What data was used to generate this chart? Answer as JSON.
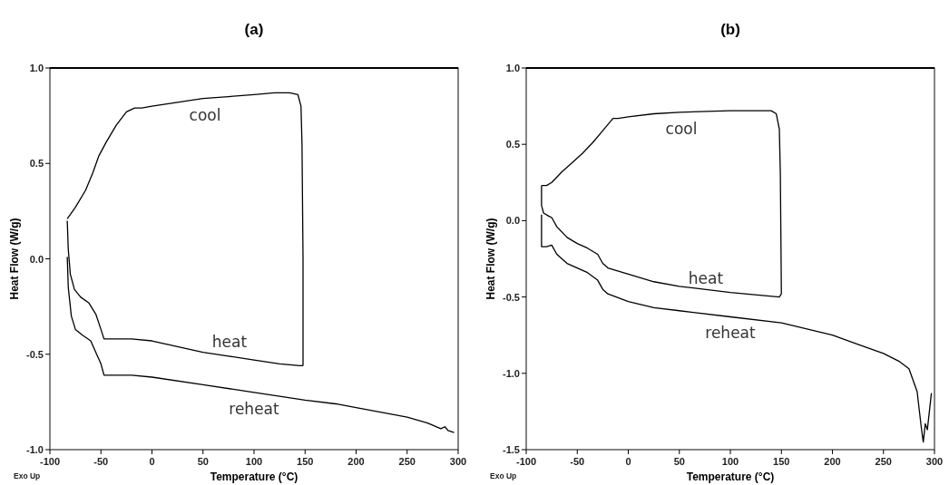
{
  "chart_data": [
    {
      "type": "line",
      "title": "(a)",
      "xlabel": "Temperature (°C)",
      "ylabel": "Heat Flow (W/g)",
      "xlim": [
        -100,
        300
      ],
      "ylim": [
        -1.0,
        1.0
      ],
      "xticks": [
        -100,
        -50,
        0,
        50,
        100,
        150,
        200,
        250,
        300
      ],
      "yticks": [
        {
          "value": -1,
          "label": "-1.0"
        },
        -0.5,
        {
          "value": 0,
          "label": "0.0"
        },
        0.5,
        {
          "value": 1,
          "label": "1.0"
        }
      ],
      "grid": false,
      "marker": "none",
      "line_style": "solid",
      "annotations": [
        "Exo Up"
      ],
      "series": [
        {
          "name": "cool",
          "color": "#000000",
          "x": [
            -83,
            -75,
            -65,
            -58,
            -52,
            -45,
            -35,
            -25,
            -17,
            -10,
            0,
            25,
            50,
            75,
            100,
            120,
            135,
            143,
            146,
            147,
            148,
            148
          ],
          "values": [
            0.21,
            0.27,
            0.36,
            0.45,
            0.54,
            0.61,
            0.7,
            0.77,
            0.79,
            0.79,
            0.8,
            0.82,
            0.84,
            0.85,
            0.86,
            0.87,
            0.87,
            0.86,
            0.8,
            0.6,
            0.0,
            -0.56
          ]
        },
        {
          "name": "heat",
          "color": "#000000",
          "x": [
            -83,
            -82,
            -80,
            -76,
            -70,
            -62,
            -55,
            -50,
            -47,
            -40,
            -20,
            0,
            25,
            50,
            75,
            100,
            125,
            145,
            148
          ],
          "values": [
            0.2,
            0.05,
            -0.08,
            -0.16,
            -0.2,
            -0.23,
            -0.29,
            -0.37,
            -0.42,
            -0.42,
            -0.42,
            -0.43,
            -0.46,
            -0.49,
            -0.51,
            -0.53,
            -0.55,
            -0.56,
            -0.56
          ]
        },
        {
          "name": "reheat",
          "color": "#000000",
          "x": [
            -83,
            -82,
            -79,
            -75,
            -68,
            -60,
            -55,
            -50,
            -47,
            -40,
            -20,
            0,
            50,
            100,
            150,
            180,
            200,
            250,
            270,
            283,
            287,
            290,
            296
          ],
          "values": [
            0.01,
            -0.15,
            -0.3,
            -0.37,
            -0.4,
            -0.43,
            -0.49,
            -0.55,
            -0.61,
            -0.61,
            -0.61,
            -0.62,
            -0.66,
            -0.7,
            -0.74,
            -0.76,
            -0.78,
            -0.83,
            -0.86,
            -0.89,
            -0.88,
            -0.9,
            -0.91
          ]
        }
      ]
    },
    {
      "type": "line",
      "title": "(b)",
      "xlabel": "Temperature (°C)",
      "ylabel": "Heat Flow (W/g)",
      "xlim": [
        -100,
        300
      ],
      "ylim": [
        -1.5,
        1.0
      ],
      "xticks": [
        -100,
        -50,
        0,
        50,
        100,
        150,
        200,
        250,
        300
      ],
      "yticks": [
        -1.5,
        {
          "value": -1,
          "label": "-1.0"
        },
        -0.5,
        {
          "value": 0,
          "label": "0.0"
        },
        0.5,
        {
          "value": 1,
          "label": "1.0"
        }
      ],
      "grid": false,
      "marker": "none",
      "line_style": "solid",
      "annotations": [
        "Exo Up"
      ],
      "series": [
        {
          "name": "cool",
          "color": "#000000",
          "x": [
            -85,
            -80,
            -75,
            -65,
            -55,
            -45,
            -35,
            -25,
            -15,
            -10,
            0,
            25,
            50,
            100,
            130,
            140,
            145,
            148,
            149,
            150
          ],
          "values": [
            0.23,
            0.23,
            0.25,
            0.32,
            0.38,
            0.44,
            0.51,
            0.59,
            0.67,
            0.67,
            0.68,
            0.7,
            0.71,
            0.72,
            0.72,
            0.72,
            0.7,
            0.6,
            0.3,
            -0.48
          ]
        },
        {
          "name": "heat",
          "color": "#000000",
          "x": [
            -85,
            -85,
            -83,
            -78,
            -75,
            -70,
            -60,
            -50,
            -40,
            -30,
            -25,
            -20,
            0,
            25,
            50,
            100,
            148,
            150
          ],
          "values": [
            0.23,
            0.1,
            0.05,
            0.03,
            0.02,
            -0.04,
            -0.11,
            -0.15,
            -0.18,
            -0.22,
            -0.28,
            -0.31,
            -0.35,
            -0.4,
            -0.43,
            -0.47,
            -0.5,
            -0.48
          ]
        },
        {
          "name": "reheat",
          "color": "#000000",
          "x": [
            -85,
            -85,
            -80,
            -75,
            -70,
            -60,
            -50,
            -40,
            -30,
            -25,
            -20,
            0,
            25,
            50,
            100,
            150,
            200,
            225,
            250,
            265,
            275,
            283,
            287,
            289,
            291,
            293,
            297
          ],
          "values": [
            0.04,
            -0.17,
            -0.17,
            -0.16,
            -0.22,
            -0.28,
            -0.31,
            -0.34,
            -0.39,
            -0.45,
            -0.48,
            -0.53,
            -0.57,
            -0.59,
            -0.63,
            -0.67,
            -0.75,
            -0.81,
            -0.87,
            -0.92,
            -0.97,
            -1.12,
            -1.35,
            -1.45,
            -1.33,
            -1.37,
            -1.13
          ]
        }
      ]
    }
  ]
}
